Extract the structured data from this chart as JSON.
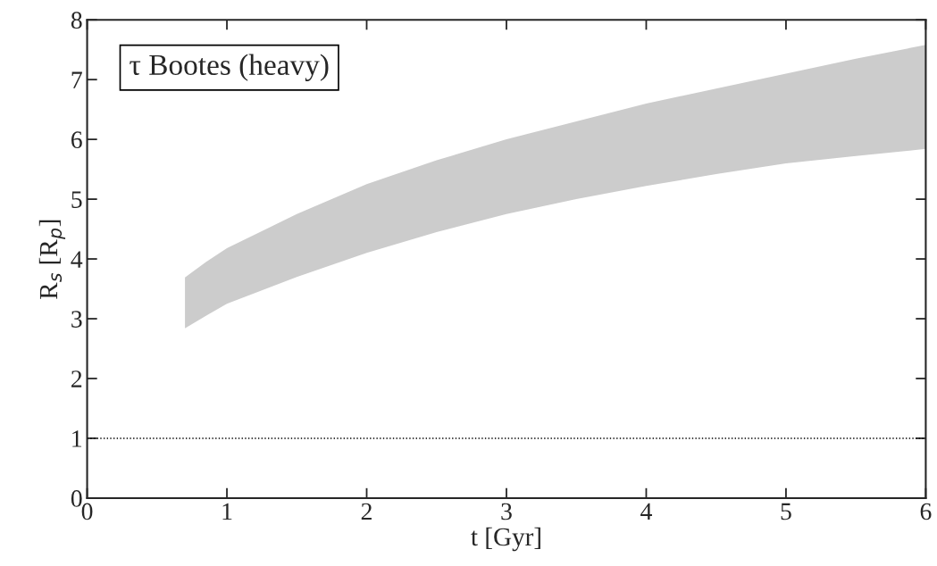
{
  "chart_data": {
    "type": "area",
    "xlabel": "t [Gyr]",
    "ylabel": "R$_{s}$ [R$_{p}$]",
    "annotations": [
      "τ Bootes (heavy)"
    ],
    "x": [
      0.7,
      0.85,
      1,
      1.5,
      2,
      2.5,
      3,
      3.5,
      4,
      4.5,
      5,
      5.5,
      6
    ],
    "series": [
      {
        "color": "#cccccc",
        "values": [
          null,
          null,
          null,
          null,
          null,
          null,
          null,
          null,
          null,
          null,
          null,
          null,
          null
        ],
        "lower": [
          2.84,
          3.05,
          3.25,
          3.7,
          4.1,
          4.45,
          4.75,
          5.0,
          5.22,
          5.42,
          5.6,
          5.72,
          5.84
        ],
        "upper": [
          3.69,
          3.95,
          4.18,
          4.75,
          5.25,
          5.65,
          6.0,
          6.3,
          6.6,
          6.85,
          7.1,
          7.35,
          7.58
        ]
      }
    ],
    "ref_lines": [
      {
        "axis": "y",
        "value": 1,
        "label": null,
        "color": "#000000",
        "line_style": "dotted"
      }
    ],
    "xlim": [
      0,
      6
    ],
    "xticks": [
      0,
      1,
      2,
      3,
      4,
      5,
      6
    ],
    "ylim": [
      0,
      8
    ],
    "yticks": [
      0,
      1,
      2,
      3,
      4,
      5,
      6,
      7,
      8
    ],
    "grid": false,
    "legend": false
  }
}
